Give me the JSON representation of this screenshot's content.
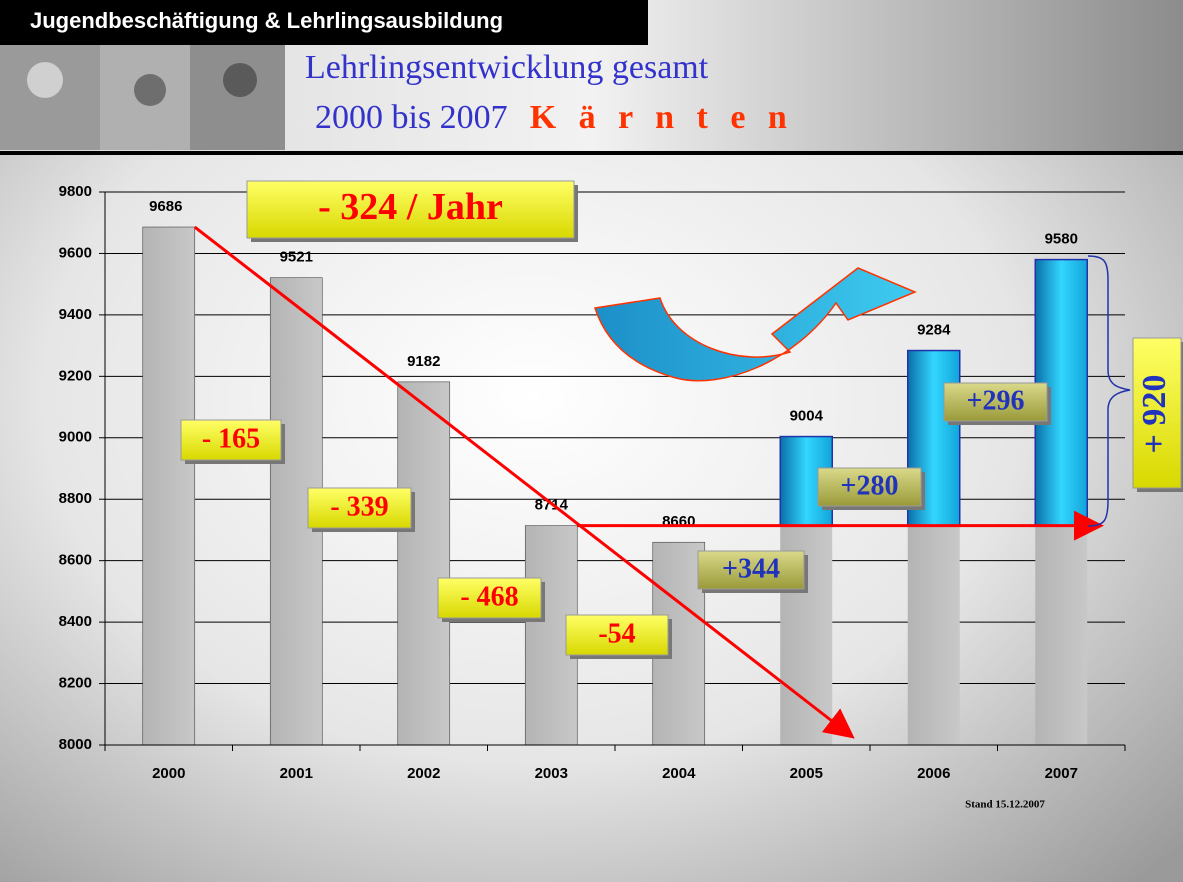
{
  "header": {
    "section": "Jugendbeschäftigung & Lehrlingsausbildung",
    "title_line1": "Lehrlingsentwicklung gesamt",
    "title_line2": "2000 bis 2007",
    "region": "K ä r n t e n"
  },
  "chart_data": {
    "type": "bar",
    "categories": [
      "2000",
      "2001",
      "2002",
      "2003",
      "2004",
      "2005",
      "2006",
      "2007"
    ],
    "values": [
      9686,
      9521,
      9182,
      8714,
      8660,
      9004,
      9284,
      9580
    ],
    "colors": [
      "#bebebe",
      "#bebebe",
      "#bebebe",
      "#bebebe",
      "#bebebe",
      "#33ccff",
      "#33ccff",
      "#33ccff"
    ],
    "ylim": [
      8000,
      9800
    ],
    "yticks": [
      8000,
      8200,
      8400,
      8600,
      8800,
      9000,
      9200,
      9400,
      9600,
      9800
    ],
    "grid": true,
    "annotations": [
      "- 324 / Jahr",
      "- 165",
      "- 339",
      "- 468",
      "-54",
      "+344",
      "+280",
      "+296",
      "+ 920"
    ],
    "note": "Stand 15.12.2007"
  }
}
